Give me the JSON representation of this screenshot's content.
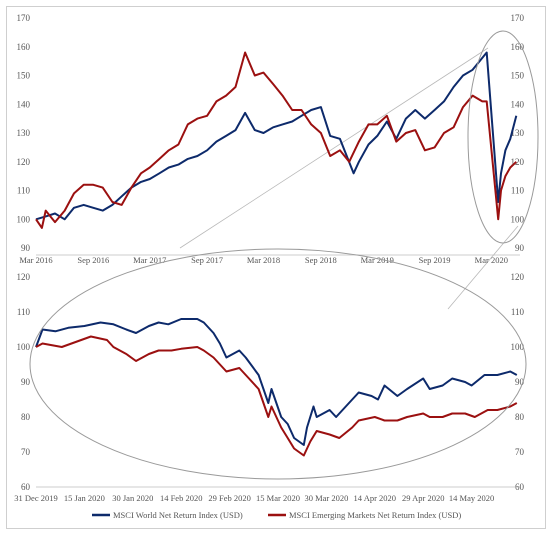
{
  "chart_data": [
    {
      "id": "top",
      "type": "line",
      "title": "",
      "xlabel": "",
      "ylabel": "",
      "ylim": [
        90,
        170
      ],
      "yticks": [
        90,
        100,
        110,
        120,
        130,
        140,
        150,
        160,
        170
      ],
      "xlim": [
        "2016-03-01",
        "2020-06-01"
      ],
      "xticks": [
        {
          "date": "2016-03-01",
          "label": "Mar 2016"
        },
        {
          "date": "2016-09-01",
          "label": "Sep 2016"
        },
        {
          "date": "2017-03-01",
          "label": "Mar 2017"
        },
        {
          "date": "2017-09-01",
          "label": "Sep 2017"
        },
        {
          "date": "2018-03-01",
          "label": "Mar 2018"
        },
        {
          "date": "2018-09-01",
          "label": "Sep 2018"
        },
        {
          "date": "2019-03-01",
          "label": "Mar 2019"
        },
        {
          "date": "2019-09-01",
          "label": "Sep 2019"
        },
        {
          "date": "2020-03-01",
          "label": "Mar 2020"
        }
      ],
      "grid": false,
      "series": [
        {
          "name": "MSCI World Net Return Index (USD)",
          "color": "#0d2a6b",
          "points": [
            [
              "2016-03-01",
              100
            ],
            [
              "2016-04-01",
              101
            ],
            [
              "2016-05-01",
              102
            ],
            [
              "2016-06-01",
              100
            ],
            [
              "2016-07-01",
              104
            ],
            [
              "2016-08-01",
              105
            ],
            [
              "2016-09-01",
              104
            ],
            [
              "2016-10-01",
              103
            ],
            [
              "2016-11-01",
              105
            ],
            [
              "2016-12-01",
              108
            ],
            [
              "2017-01-01",
              111
            ],
            [
              "2017-02-01",
              113
            ],
            [
              "2017-03-01",
              114
            ],
            [
              "2017-04-01",
              116
            ],
            [
              "2017-05-01",
              118
            ],
            [
              "2017-06-01",
              119
            ],
            [
              "2017-07-01",
              121
            ],
            [
              "2017-08-01",
              122
            ],
            [
              "2017-09-01",
              124
            ],
            [
              "2017-10-01",
              127
            ],
            [
              "2017-11-01",
              129
            ],
            [
              "2017-12-01",
              131
            ],
            [
              "2018-01-01",
              137
            ],
            [
              "2018-02-01",
              131
            ],
            [
              "2018-03-01",
              130
            ],
            [
              "2018-04-01",
              132
            ],
            [
              "2018-05-01",
              133
            ],
            [
              "2018-06-01",
              134
            ],
            [
              "2018-07-01",
              136
            ],
            [
              "2018-08-01",
              138
            ],
            [
              "2018-09-01",
              139
            ],
            [
              "2018-10-01",
              129
            ],
            [
              "2018-11-01",
              128
            ],
            [
              "2018-12-15",
              116
            ],
            [
              "2019-01-01",
              120
            ],
            [
              "2019-02-01",
              126
            ],
            [
              "2019-03-01",
              129
            ],
            [
              "2019-04-01",
              134
            ],
            [
              "2019-05-01",
              128
            ],
            [
              "2019-06-01",
              135
            ],
            [
              "2019-07-01",
              138
            ],
            [
              "2019-08-01",
              135
            ],
            [
              "2019-09-01",
              138
            ],
            [
              "2019-10-01",
              141
            ],
            [
              "2019-11-01",
              146
            ],
            [
              "2019-12-01",
              150
            ],
            [
              "2020-01-01",
              152
            ],
            [
              "2020-02-15",
              158
            ],
            [
              "2020-03-23",
              106
            ],
            [
              "2020-04-01",
              116
            ],
            [
              "2020-04-15",
              124
            ],
            [
              "2020-05-01",
              128
            ],
            [
              "2020-05-20",
              136
            ]
          ]
        },
        {
          "name": "MSCI Emerging Markets Net Return Index (USD)",
          "color": "#9b1010",
          "points": [
            [
              "2016-03-01",
              100
            ],
            [
              "2016-03-20",
              97
            ],
            [
              "2016-04-01",
              103
            ],
            [
              "2016-05-01",
              99
            ],
            [
              "2016-06-01",
              103
            ],
            [
              "2016-07-01",
              109
            ],
            [
              "2016-08-01",
              112
            ],
            [
              "2016-09-01",
              112
            ],
            [
              "2016-10-01",
              111
            ],
            [
              "2016-11-01",
              106
            ],
            [
              "2016-12-01",
              105
            ],
            [
              "2017-01-01",
              111
            ],
            [
              "2017-02-01",
              116
            ],
            [
              "2017-03-01",
              118
            ],
            [
              "2017-04-01",
              121
            ],
            [
              "2017-05-01",
              124
            ],
            [
              "2017-06-01",
              126
            ],
            [
              "2017-07-01",
              133
            ],
            [
              "2017-08-01",
              135
            ],
            [
              "2017-09-01",
              136
            ],
            [
              "2017-10-01",
              141
            ],
            [
              "2017-11-01",
              143
            ],
            [
              "2017-12-01",
              146
            ],
            [
              "2018-01-01",
              158
            ],
            [
              "2018-02-01",
              150
            ],
            [
              "2018-03-01",
              151
            ],
            [
              "2018-04-01",
              147
            ],
            [
              "2018-05-01",
              143
            ],
            [
              "2018-06-01",
              138
            ],
            [
              "2018-07-01",
              138
            ],
            [
              "2018-08-01",
              133
            ],
            [
              "2018-09-01",
              130
            ],
            [
              "2018-10-01",
              122
            ],
            [
              "2018-11-01",
              124
            ],
            [
              "2018-12-01",
              120
            ],
            [
              "2019-01-01",
              127
            ],
            [
              "2019-02-01",
              133
            ],
            [
              "2019-03-01",
              133
            ],
            [
              "2019-04-01",
              136
            ],
            [
              "2019-05-01",
              127
            ],
            [
              "2019-06-01",
              130
            ],
            [
              "2019-07-01",
              131
            ],
            [
              "2019-08-01",
              124
            ],
            [
              "2019-09-01",
              125
            ],
            [
              "2019-10-01",
              130
            ],
            [
              "2019-11-01",
              132
            ],
            [
              "2019-12-01",
              139
            ],
            [
              "2020-01-01",
              143
            ],
            [
              "2020-02-01",
              141
            ],
            [
              "2020-02-15",
              141
            ],
            [
              "2020-03-23",
              100
            ],
            [
              "2020-04-01",
              110
            ],
            [
              "2020-04-15",
              115
            ],
            [
              "2020-05-01",
              118
            ],
            [
              "2020-05-20",
              120
            ]
          ]
        }
      ]
    },
    {
      "id": "bottom",
      "type": "line",
      "title": "",
      "xlabel": "",
      "ylabel": "",
      "ylim": [
        60,
        120
      ],
      "yticks": [
        60,
        70,
        80,
        90,
        100,
        110,
        120
      ],
      "xlim": [
        "2019-12-31",
        "2020-05-29"
      ],
      "xticks": [
        {
          "date": "2019-12-31",
          "label": "31 Dec 2019"
        },
        {
          "date": "2020-01-15",
          "label": "15 Jan 2020"
        },
        {
          "date": "2020-01-30",
          "label": "30 Jan 2020"
        },
        {
          "date": "2020-02-14",
          "label": "14 Feb 2020"
        },
        {
          "date": "2020-02-29",
          "label": "29 Feb 2020"
        },
        {
          "date": "2020-03-15",
          "label": "15 Mar 2020"
        },
        {
          "date": "2020-03-30",
          "label": "30 Mar 2020"
        },
        {
          "date": "2020-04-14",
          "label": "14 Apr 2020"
        },
        {
          "date": "2020-04-29",
          "label": "29 Apr 2020"
        },
        {
          "date": "2020-05-14",
          "label": "14 May 2020"
        }
      ],
      "grid": false,
      "legend_placement": "bottom",
      "series": [
        {
          "name": "MSCI World Net Return Index (USD)",
          "color": "#0d2a6b",
          "points": [
            [
              "2019-12-31",
              100
            ],
            [
              "2020-01-02",
              105
            ],
            [
              "2020-01-06",
              104.5
            ],
            [
              "2020-01-10",
              105.5
            ],
            [
              "2020-01-15",
              106
            ],
            [
              "2020-01-20",
              107
            ],
            [
              "2020-01-24",
              106.5
            ],
            [
              "2020-01-28",
              105
            ],
            [
              "2020-01-31",
              104
            ],
            [
              "2020-02-04",
              106
            ],
            [
              "2020-02-07",
              107
            ],
            [
              "2020-02-10",
              106.5
            ],
            [
              "2020-02-14",
              108
            ],
            [
              "2020-02-19",
              108
            ],
            [
              "2020-02-21",
              107
            ],
            [
              "2020-02-24",
              104
            ],
            [
              "2020-02-26",
              101
            ],
            [
              "2020-02-28",
              97
            ],
            [
              "2020-03-03",
              99
            ],
            [
              "2020-03-05",
              97
            ],
            [
              "2020-03-09",
              92
            ],
            [
              "2020-03-12",
              84
            ],
            [
              "2020-03-13",
              88
            ],
            [
              "2020-03-16",
              80
            ],
            [
              "2020-03-18",
              78
            ],
            [
              "2020-03-20",
              74
            ],
            [
              "2020-03-23",
              72
            ],
            [
              "2020-03-24",
              77
            ],
            [
              "2020-03-26",
              83
            ],
            [
              "2020-03-27",
              80
            ],
            [
              "2020-03-31",
              82
            ],
            [
              "2020-04-02",
              80
            ],
            [
              "2020-04-06",
              84
            ],
            [
              "2020-04-09",
              87
            ],
            [
              "2020-04-13",
              86
            ],
            [
              "2020-04-15",
              85
            ],
            [
              "2020-04-17",
              89
            ],
            [
              "2020-04-21",
              86
            ],
            [
              "2020-04-24",
              88
            ],
            [
              "2020-04-29",
              91
            ],
            [
              "2020-05-01",
              88
            ],
            [
              "2020-05-05",
              89
            ],
            [
              "2020-05-08",
              91
            ],
            [
              "2020-05-12",
              90
            ],
            [
              "2020-05-14",
              89
            ],
            [
              "2020-05-18",
              92
            ],
            [
              "2020-05-22",
              92
            ],
            [
              "2020-05-26",
              93
            ],
            [
              "2020-05-28",
              92
            ]
          ]
        },
        {
          "name": "MSCI Emerging Markets Net Return Index (USD)",
          "color": "#9b1010",
          "points": [
            [
              "2019-12-31",
              100
            ],
            [
              "2020-01-02",
              101
            ],
            [
              "2020-01-08",
              100
            ],
            [
              "2020-01-14",
              102
            ],
            [
              "2020-01-17",
              103
            ],
            [
              "2020-01-22",
              102
            ],
            [
              "2020-01-24",
              100
            ],
            [
              "2020-01-28",
              98
            ],
            [
              "2020-01-31",
              96
            ],
            [
              "2020-02-04",
              98
            ],
            [
              "2020-02-07",
              99
            ],
            [
              "2020-02-11",
              99
            ],
            [
              "2020-02-14",
              99.5
            ],
            [
              "2020-02-19",
              100
            ],
            [
              "2020-02-21",
              99
            ],
            [
              "2020-02-24",
              97
            ],
            [
              "2020-02-28",
              93
            ],
            [
              "2020-03-03",
              94
            ],
            [
              "2020-03-06",
              91
            ],
            [
              "2020-03-09",
              88
            ],
            [
              "2020-03-12",
              80
            ],
            [
              "2020-03-13",
              83
            ],
            [
              "2020-03-16",
              77
            ],
            [
              "2020-03-18",
              74
            ],
            [
              "2020-03-20",
              71
            ],
            [
              "2020-03-23",
              69
            ],
            [
              "2020-03-25",
              73
            ],
            [
              "2020-03-27",
              76
            ],
            [
              "2020-03-31",
              75
            ],
            [
              "2020-04-03",
              74
            ],
            [
              "2020-04-07",
              77
            ],
            [
              "2020-04-09",
              79
            ],
            [
              "2020-04-14",
              80
            ],
            [
              "2020-04-17",
              79
            ],
            [
              "2020-04-21",
              79
            ],
            [
              "2020-04-24",
              80
            ],
            [
              "2020-04-29",
              81
            ],
            [
              "2020-05-01",
              80
            ],
            [
              "2020-05-05",
              80
            ],
            [
              "2020-05-08",
              81
            ],
            [
              "2020-05-12",
              81
            ],
            [
              "2020-05-15",
              80
            ],
            [
              "2020-05-19",
              82
            ],
            [
              "2020-05-22",
              82
            ],
            [
              "2020-05-26",
              83
            ],
            [
              "2020-05-28",
              84
            ]
          ]
        }
      ]
    }
  ],
  "legend": [
    {
      "label": "MSCI World Net Return Index (USD)",
      "color": "#0d2a6b"
    },
    {
      "label": "MSCI Emerging Markets Net Return Index (USD)",
      "color": "#9b1010"
    }
  ]
}
